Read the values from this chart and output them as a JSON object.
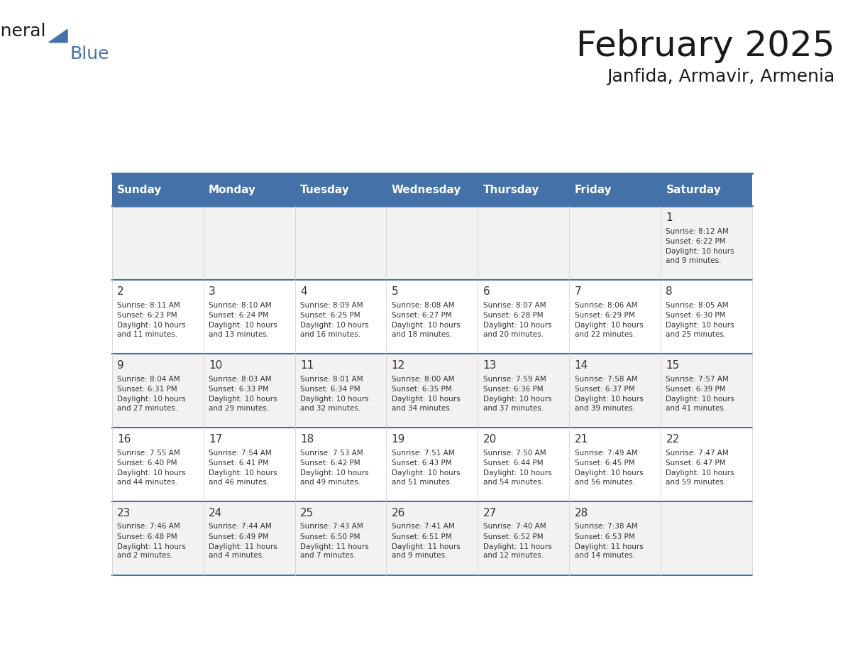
{
  "title": "February 2025",
  "subtitle": "Janfida, Armavir, Armenia",
  "days_of_week": [
    "Sunday",
    "Monday",
    "Tuesday",
    "Wednesday",
    "Thursday",
    "Friday",
    "Saturday"
  ],
  "header_bg": "#4472a8",
  "header_text": "#ffffff",
  "cell_bg_even": "#f2f2f2",
  "cell_bg_odd": "#ffffff",
  "border_color": "#4472a8",
  "text_color": "#333333",
  "day_num_color": "#333333",
  "calendar": [
    [
      null,
      null,
      null,
      null,
      null,
      null,
      {
        "day": 1,
        "sunrise": "8:12 AM",
        "sunset": "6:22 PM",
        "daylight": "10 hours and 9 minutes."
      }
    ],
    [
      {
        "day": 2,
        "sunrise": "8:11 AM",
        "sunset": "6:23 PM",
        "daylight": "10 hours and 11 minutes."
      },
      {
        "day": 3,
        "sunrise": "8:10 AM",
        "sunset": "6:24 PM",
        "daylight": "10 hours and 13 minutes."
      },
      {
        "day": 4,
        "sunrise": "8:09 AM",
        "sunset": "6:25 PM",
        "daylight": "10 hours and 16 minutes."
      },
      {
        "day": 5,
        "sunrise": "8:08 AM",
        "sunset": "6:27 PM",
        "daylight": "10 hours and 18 minutes."
      },
      {
        "day": 6,
        "sunrise": "8:07 AM",
        "sunset": "6:28 PM",
        "daylight": "10 hours and 20 minutes."
      },
      {
        "day": 7,
        "sunrise": "8:06 AM",
        "sunset": "6:29 PM",
        "daylight": "10 hours and 22 minutes."
      },
      {
        "day": 8,
        "sunrise": "8:05 AM",
        "sunset": "6:30 PM",
        "daylight": "10 hours and 25 minutes."
      }
    ],
    [
      {
        "day": 9,
        "sunrise": "8:04 AM",
        "sunset": "6:31 PM",
        "daylight": "10 hours and 27 minutes."
      },
      {
        "day": 10,
        "sunrise": "8:03 AM",
        "sunset": "6:33 PM",
        "daylight": "10 hours and 29 minutes."
      },
      {
        "day": 11,
        "sunrise": "8:01 AM",
        "sunset": "6:34 PM",
        "daylight": "10 hours and 32 minutes."
      },
      {
        "day": 12,
        "sunrise": "8:00 AM",
        "sunset": "6:35 PM",
        "daylight": "10 hours and 34 minutes."
      },
      {
        "day": 13,
        "sunrise": "7:59 AM",
        "sunset": "6:36 PM",
        "daylight": "10 hours and 37 minutes."
      },
      {
        "day": 14,
        "sunrise": "7:58 AM",
        "sunset": "6:37 PM",
        "daylight": "10 hours and 39 minutes."
      },
      {
        "day": 15,
        "sunrise": "7:57 AM",
        "sunset": "6:39 PM",
        "daylight": "10 hours and 41 minutes."
      }
    ],
    [
      {
        "day": 16,
        "sunrise": "7:55 AM",
        "sunset": "6:40 PM",
        "daylight": "10 hours and 44 minutes."
      },
      {
        "day": 17,
        "sunrise": "7:54 AM",
        "sunset": "6:41 PM",
        "daylight": "10 hours and 46 minutes."
      },
      {
        "day": 18,
        "sunrise": "7:53 AM",
        "sunset": "6:42 PM",
        "daylight": "10 hours and 49 minutes."
      },
      {
        "day": 19,
        "sunrise": "7:51 AM",
        "sunset": "6:43 PM",
        "daylight": "10 hours and 51 minutes."
      },
      {
        "day": 20,
        "sunrise": "7:50 AM",
        "sunset": "6:44 PM",
        "daylight": "10 hours and 54 minutes."
      },
      {
        "day": 21,
        "sunrise": "7:49 AM",
        "sunset": "6:45 PM",
        "daylight": "10 hours and 56 minutes."
      },
      {
        "day": 22,
        "sunrise": "7:47 AM",
        "sunset": "6:47 PM",
        "daylight": "10 hours and 59 minutes."
      }
    ],
    [
      {
        "day": 23,
        "sunrise": "7:46 AM",
        "sunset": "6:48 PM",
        "daylight": "11 hours and 2 minutes."
      },
      {
        "day": 24,
        "sunrise": "7:44 AM",
        "sunset": "6:49 PM",
        "daylight": "11 hours and 4 minutes."
      },
      {
        "day": 25,
        "sunrise": "7:43 AM",
        "sunset": "6:50 PM",
        "daylight": "11 hours and 7 minutes."
      },
      {
        "day": 26,
        "sunrise": "7:41 AM",
        "sunset": "6:51 PM",
        "daylight": "11 hours and 9 minutes."
      },
      {
        "day": 27,
        "sunrise": "7:40 AM",
        "sunset": "6:52 PM",
        "daylight": "11 hours and 12 minutes."
      },
      {
        "day": 28,
        "sunrise": "7:38 AM",
        "sunset": "6:53 PM",
        "daylight": "11 hours and 14 minutes."
      },
      null
    ]
  ]
}
